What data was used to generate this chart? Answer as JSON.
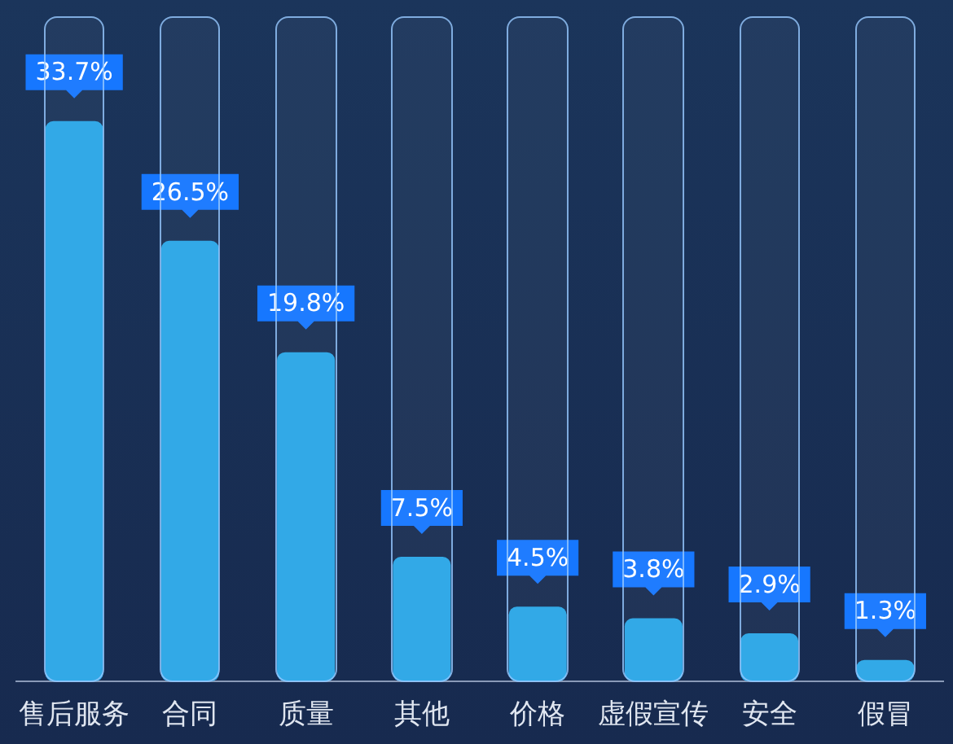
{
  "chart_data": {
    "type": "bar",
    "categories": [
      "售后服务",
      "合同",
      "质量",
      "其他",
      "价格",
      "虚假宣传",
      "安全",
      "假冒"
    ],
    "values": [
      33.7,
      26.5,
      19.8,
      7.5,
      4.5,
      3.8,
      2.9,
      1.3
    ],
    "value_labels": [
      "33.7%",
      "26.5%",
      "19.8%",
      "7.5%",
      "4.5%",
      "3.8%",
      "2.9%",
      "1.3%"
    ],
    "color": "#2aa6e6",
    "ylim": [
      0,
      40
    ],
    "tick_labels": "x",
    "legend": false
  }
}
